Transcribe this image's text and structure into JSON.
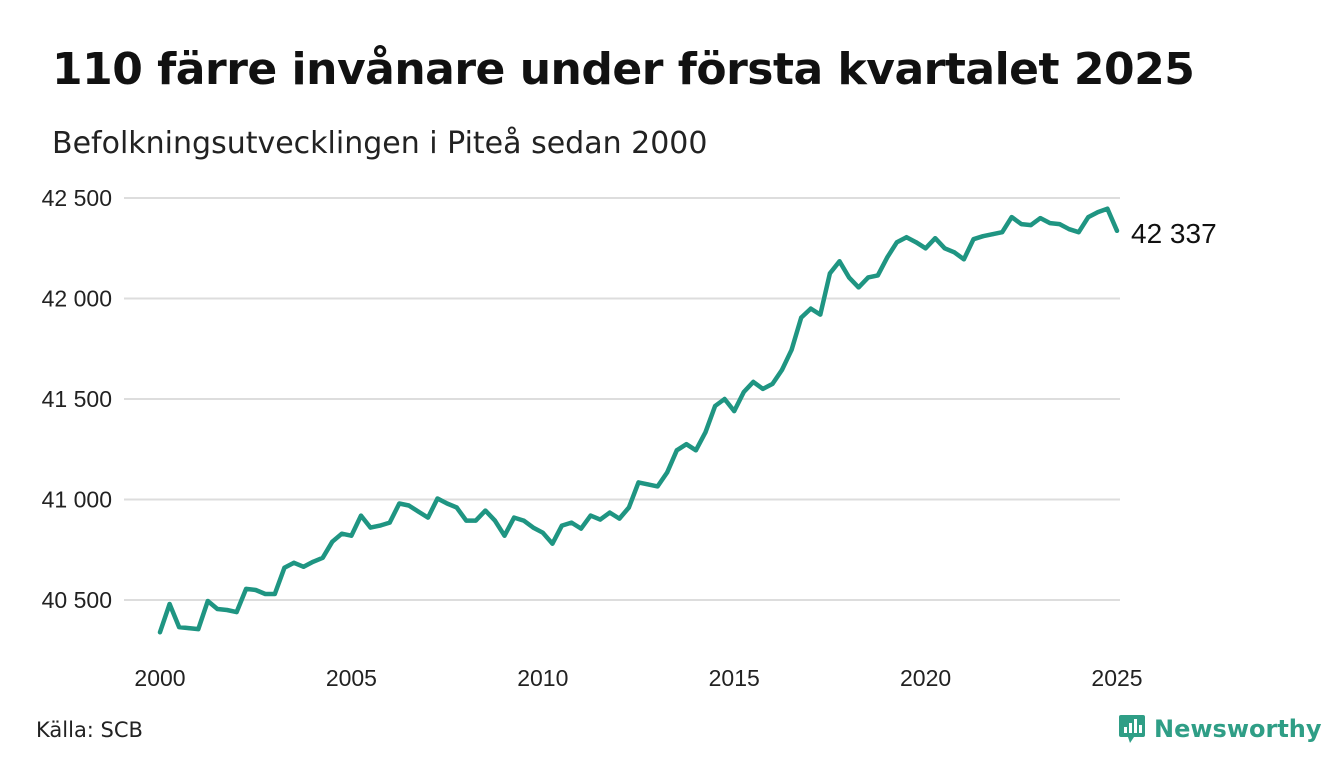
{
  "title": "110 färre invånare under första kvartalet 2025",
  "subtitle": "Befolkningsutvecklingen i Piteå sedan 2000",
  "source": "Källa: SCB",
  "brand": {
    "name": "Newsworthy",
    "icon": "newsworthy-logo-icon",
    "color": "#2f9e86"
  },
  "chart_data": {
    "type": "line",
    "title": "110 färre invånare under första kvartalet 2025",
    "subtitle": "Befolkningsutvecklingen i Piteå sedan 2000",
    "xlabel": "",
    "ylabel": "",
    "xlim": [
      2000,
      2025.25
    ],
    "ylim": [
      40350,
      42550
    ],
    "grid": true,
    "legend": "none",
    "line_color": "#1f9582",
    "x_ticks": [
      {
        "value": 2000,
        "label": "2000"
      },
      {
        "value": 2005,
        "label": "2005"
      },
      {
        "value": 2010,
        "label": "2010"
      },
      {
        "value": 2015,
        "label": "2015"
      },
      {
        "value": 2020,
        "label": "2020"
      },
      {
        "value": 2025,
        "label": "2025"
      }
    ],
    "y_ticks": [
      {
        "value": 40500,
        "label": "40 500"
      },
      {
        "value": 41000,
        "label": "41 000"
      },
      {
        "value": 41500,
        "label": "41 500"
      },
      {
        "value": 42000,
        "label": "42 000"
      },
      {
        "value": 42500,
        "label": "42 500"
      }
    ],
    "end_label": "42 337",
    "series": [
      {
        "x_start": 2000,
        "x_step": 0.25,
        "values": [
          40340,
          40480,
          40365,
          40360,
          40355,
          40495,
          40455,
          40450,
          40440,
          40555,
          40550,
          40530,
          40530,
          40660,
          40685,
          40665,
          40690,
          40710,
          40790,
          40830,
          40820,
          40920,
          40860,
          40870,
          40885,
          40980,
          40970,
          40940,
          40910,
          41005,
          40980,
          40960,
          40895,
          40895,
          40945,
          40895,
          40820,
          40910,
          40895,
          40860,
          40835,
          40780,
          40870,
          40885,
          40855,
          40920,
          40900,
          40935,
          40905,
          40960,
          41085,
          41075,
          41065,
          41135,
          41245,
          41275,
          41245,
          41335,
          41465,
          41500,
          41440,
          41535,
          41585,
          41550,
          41575,
          41645,
          41745,
          41905,
          41950,
          41920,
          42125,
          42185,
          42105,
          42055,
          42105,
          42115,
          42205,
          42280,
          42305,
          42280,
          42250,
          42300,
          42250,
          42230,
          42195,
          42295,
          42310,
          42320,
          42330,
          42405,
          42370,
          42365,
          42400,
          42375,
          42370,
          42345,
          42330,
          42405,
          42430,
          42447,
          42337
        ]
      }
    ]
  }
}
